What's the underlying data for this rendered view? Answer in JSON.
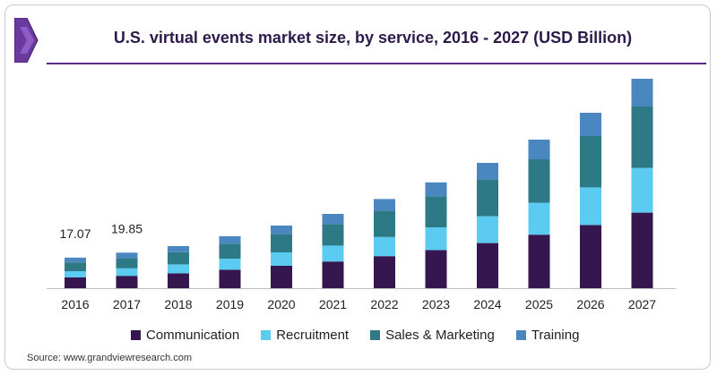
{
  "header": {
    "title": "U.S. virtual events market size, by service, 2016 - 2027 (USD Billion)"
  },
  "source": "Source: www.grandviewresearch.com",
  "colors": {
    "Communication": "#35164e",
    "Recruitment": "#5ccbf2",
    "Sales & Marketing": "#2d7a86",
    "Training": "#4a86bf",
    "brand": "#5b2a86"
  },
  "chart_data": {
    "type": "bar",
    "stacked": true,
    "title": "U.S. virtual events market size, by service, 2016 - 2027 (USD Billion)",
    "categories": [
      "2016",
      "2017",
      "2018",
      "2019",
      "2020",
      "2021",
      "2022",
      "2023",
      "2024",
      "2025",
      "2026",
      "2027"
    ],
    "series": [
      {
        "name": "Communication",
        "values": [
          6.0,
          6.9,
          8.3,
          10.3,
          12.5,
          14.9,
          17.9,
          21.3,
          25.2,
          29.9,
          35.3,
          42.2
        ]
      },
      {
        "name": "Recruitment",
        "values": [
          3.5,
          4.2,
          5.0,
          6.2,
          7.5,
          8.9,
          10.7,
          12.7,
          15.0,
          17.8,
          21.0,
          25.0
        ]
      },
      {
        "name": "Sales & Marketing",
        "values": [
          4.9,
          5.6,
          6.8,
          8.4,
          10.2,
          12.1,
          14.6,
          17.3,
          20.5,
          24.3,
          28.7,
          34.3
        ]
      },
      {
        "name": "Training",
        "values": [
          2.67,
          3.15,
          3.4,
          4.1,
          4.8,
          5.6,
          6.6,
          7.8,
          9.3,
          11.0,
          13.0,
          15.5
        ]
      }
    ],
    "totals_labeled": {
      "2016": "17.07",
      "2017": "19.85"
    },
    "legend_position": "bottom",
    "grid": false
  }
}
